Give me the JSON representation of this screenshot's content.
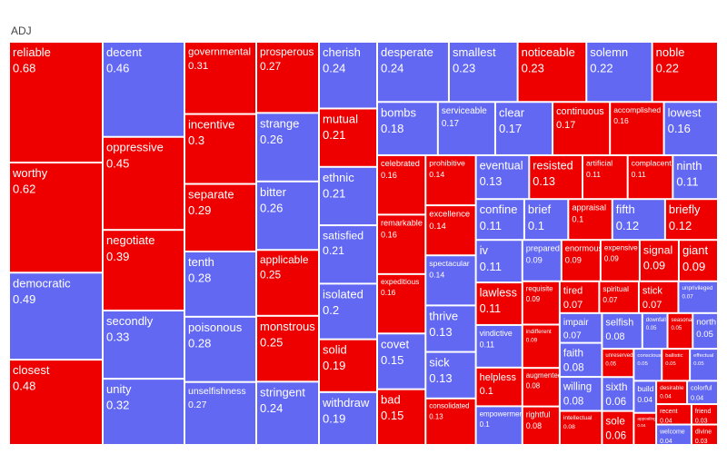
{
  "title": "ADJ",
  "colors": {
    "red": "#ee0000",
    "blue": "#6268f2",
    "border": "#ffffff"
  },
  "chart_data": {
    "type": "treemap",
    "title": "ADJ",
    "color_sequence_note": "",
    "columns": [
      [
        "reliable",
        "worthy",
        "democratic",
        "closest"
      ],
      [
        "decent",
        "oppressive",
        "negotiate",
        "secondly",
        "unity"
      ],
      [
        "governmental",
        "incentive",
        "separate",
        "tenth",
        "poisonous",
        "unselfishness"
      ],
      [
        "prosperous",
        "strange",
        "bitter",
        "applicable",
        "monstrous",
        "stringent"
      ],
      [
        "cherish",
        "mutual",
        "ethnic",
        "satisfied",
        "isolated",
        "solid",
        "withdraw"
      ]
    ],
    "items": [
      {
        "label": "reliable",
        "value": 0.68,
        "color": "red"
      },
      {
        "label": "worthy",
        "value": 0.62,
        "color": "red"
      },
      {
        "label": "democratic",
        "value": 0.49,
        "color": "blue"
      },
      {
        "label": "closest",
        "value": 0.48,
        "color": "red"
      },
      {
        "label": "decent",
        "value": 0.46,
        "color": "blue"
      },
      {
        "label": "oppressive",
        "value": 0.45,
        "color": "red"
      },
      {
        "label": "negotiate",
        "value": 0.39,
        "color": "red"
      },
      {
        "label": "secondly",
        "value": 0.33,
        "color": "blue"
      },
      {
        "label": "unity",
        "value": 0.32,
        "color": "blue"
      },
      {
        "label": "governmental",
        "value": 0.31,
        "color": "red"
      },
      {
        "label": "incentive",
        "value": 0.3,
        "color": "red"
      },
      {
        "label": "separate",
        "value": 0.29,
        "color": "red"
      },
      {
        "label": "tenth",
        "value": 0.28,
        "color": "blue"
      },
      {
        "label": "poisonous",
        "value": 0.28,
        "color": "blue"
      },
      {
        "label": "unselfishness",
        "value": 0.27,
        "color": "blue"
      },
      {
        "label": "prosperous",
        "value": 0.27,
        "color": "red"
      },
      {
        "label": "strange",
        "value": 0.26,
        "color": "blue"
      },
      {
        "label": "bitter",
        "value": 0.26,
        "color": "blue"
      },
      {
        "label": "applicable",
        "value": 0.25,
        "color": "red"
      },
      {
        "label": "monstrous",
        "value": 0.25,
        "color": "red"
      },
      {
        "label": "stringent",
        "value": 0.24,
        "color": "blue"
      },
      {
        "label": "cherish",
        "value": 0.24,
        "color": "blue"
      },
      {
        "label": "mutual",
        "value": 0.21,
        "color": "red"
      },
      {
        "label": "ethnic",
        "value": 0.21,
        "color": "blue"
      },
      {
        "label": "satisfied",
        "value": 0.21,
        "color": "blue"
      },
      {
        "label": "isolated",
        "value": 0.2,
        "color": "blue"
      },
      {
        "label": "solid",
        "value": 0.19,
        "color": "red"
      },
      {
        "label": "withdraw",
        "value": 0.19,
        "color": "blue"
      },
      {
        "label": "desperate",
        "value": 0.24,
        "color": "blue"
      },
      {
        "label": "smallest",
        "value": 0.23,
        "color": "blue"
      },
      {
        "label": "noticeable",
        "value": 0.23,
        "color": "red"
      },
      {
        "label": "solemn",
        "value": 0.22,
        "color": "blue"
      },
      {
        "label": "noble",
        "value": 0.22,
        "color": "red"
      },
      {
        "label": "bombs",
        "value": 0.18,
        "color": "blue"
      },
      {
        "label": "serviceable",
        "value": 0.17,
        "color": "blue"
      },
      {
        "label": "clear",
        "value": 0.17,
        "color": "blue"
      },
      {
        "label": "continuous",
        "value": 0.17,
        "color": "red"
      },
      {
        "label": "accomplished",
        "value": 0.16,
        "color": "red"
      },
      {
        "label": "lowest",
        "value": 0.16,
        "color": "blue"
      },
      {
        "label": "celebrated",
        "value": 0.16,
        "color": "red"
      },
      {
        "label": "remarkable",
        "value": 0.16,
        "color": "red"
      },
      {
        "label": "expeditious",
        "value": 0.16,
        "color": "red"
      },
      {
        "label": "covet",
        "value": 0.15,
        "color": "blue"
      },
      {
        "label": "bad",
        "value": 0.15,
        "color": "red"
      },
      {
        "label": "prohibitive",
        "value": 0.14,
        "color": "red"
      },
      {
        "label": "excellence",
        "value": 0.14,
        "color": "red"
      },
      {
        "label": "spectacular",
        "value": 0.14,
        "color": "blue"
      },
      {
        "label": "thrive",
        "value": 0.13,
        "color": "blue"
      },
      {
        "label": "sick",
        "value": 0.13,
        "color": "blue"
      },
      {
        "label": "consolidated",
        "value": 0.13,
        "color": "red"
      },
      {
        "label": "eventual",
        "value": 0.13,
        "color": "blue"
      },
      {
        "label": "resisted",
        "value": 0.13,
        "color": "red"
      },
      {
        "label": "artificial",
        "value": 0.11,
        "color": "red"
      },
      {
        "label": "complacent",
        "value": 0.11,
        "color": "red"
      },
      {
        "label": "ninth",
        "value": 0.11,
        "color": "blue"
      },
      {
        "label": "confine",
        "value": 0.11,
        "color": "blue"
      },
      {
        "label": "brief",
        "value": 0.1,
        "color": "blue"
      },
      {
        "label": "appraisal",
        "value": 0.1,
        "color": "red"
      },
      {
        "label": "fifth",
        "value": 0.12,
        "color": "blue"
      },
      {
        "label": "briefly",
        "value": 0.12,
        "color": "red"
      },
      {
        "label": "iv",
        "value": 0.11,
        "color": "blue"
      },
      {
        "label": "lawless",
        "value": 0.11,
        "color": "red"
      },
      {
        "label": "vindictive",
        "value": 0.11,
        "color": "blue"
      },
      {
        "label": "helpless",
        "value": 0.1,
        "color": "red"
      },
      {
        "label": "empowerment",
        "value": 0.1,
        "color": "blue"
      },
      {
        "label": "prepared",
        "value": 0.09,
        "color": "blue"
      },
      {
        "label": "enormous",
        "value": 0.09,
        "color": "red"
      },
      {
        "label": "expensive",
        "value": 0.09,
        "color": "red"
      },
      {
        "label": "signal",
        "value": 0.09,
        "color": "red"
      },
      {
        "label": "giant",
        "value": 0.09,
        "color": "red"
      },
      {
        "label": "requisite",
        "value": 0.09,
        "color": "red"
      },
      {
        "label": "indifferent",
        "value": 0.09,
        "color": "red"
      },
      {
        "label": "augmented",
        "value": 0.08,
        "color": "red"
      },
      {
        "label": "rightful",
        "value": 0.08,
        "color": "red"
      },
      {
        "label": "tired",
        "value": 0.07,
        "color": "red"
      },
      {
        "label": "spiritual",
        "value": 0.07,
        "color": "red"
      },
      {
        "label": "stick",
        "value": 0.07,
        "color": "red"
      },
      {
        "label": "unprivileged",
        "value": 0.07,
        "color": "blue"
      },
      {
        "label": "impair",
        "value": 0.07,
        "color": "blue"
      },
      {
        "label": "faith",
        "value": 0.08,
        "color": "blue"
      },
      {
        "label": "willing",
        "value": 0.08,
        "color": "blue"
      },
      {
        "label": "intellectual",
        "value": 0.08,
        "color": "red"
      },
      {
        "label": "selfish",
        "value": 0.08,
        "color": "blue"
      },
      {
        "label": "downfall",
        "value": 0.05,
        "color": "blue"
      },
      {
        "label": "seasonal",
        "value": 0.05,
        "color": "red"
      },
      {
        "label": "north",
        "value": 0.05,
        "color": "blue"
      },
      {
        "label": "unreserved",
        "value": 0.05,
        "color": "red"
      },
      {
        "label": "sixth",
        "value": 0.06,
        "color": "blue"
      },
      {
        "label": "sole",
        "value": 0.06,
        "color": "red"
      },
      {
        "label": "conscious",
        "value": 0.05,
        "color": "blue"
      },
      {
        "label": "ballistic",
        "value": 0.05,
        "color": "red"
      },
      {
        "label": "effectual",
        "value": 0.05,
        "color": "blue"
      },
      {
        "label": "build",
        "value": 0.04,
        "color": "blue"
      },
      {
        "label": "appealing",
        "value": 0.04,
        "color": "red"
      },
      {
        "label": "desirable",
        "value": 0.04,
        "color": "red"
      },
      {
        "label": "colorful",
        "value": 0.04,
        "color": "blue"
      },
      {
        "label": "recent",
        "value": 0.04,
        "color": "red"
      },
      {
        "label": "welcome",
        "value": 0.04,
        "color": "blue"
      },
      {
        "label": "friend",
        "value": 0.03,
        "color": "red"
      },
      {
        "label": "divine",
        "value": 0.03,
        "color": "red"
      }
    ]
  }
}
